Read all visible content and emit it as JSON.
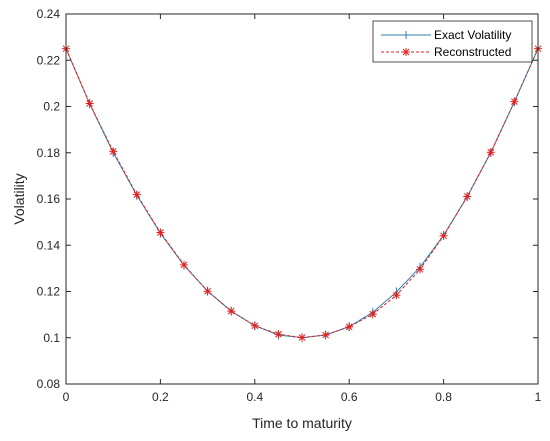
{
  "chart_data": {
    "type": "line",
    "title": "",
    "xlabel": "Time to maturity",
    "ylabel": "Volatility",
    "xlim": [
      0,
      1
    ],
    "ylim": [
      0.08,
      0.24
    ],
    "x_ticks": [
      0,
      0.2,
      0.4,
      0.6,
      0.8,
      1
    ],
    "x_tick_labels": [
      "0",
      "0.2",
      "0.4",
      "0.6",
      "0.8",
      "1"
    ],
    "y_ticks": [
      0.08,
      0.1,
      0.12,
      0.14,
      0.16,
      0.18,
      0.2,
      0.22,
      0.24
    ],
    "y_tick_labels": [
      "0.08",
      "0.1",
      "0.12",
      "0.14",
      "0.16",
      "0.18",
      "0.2",
      "0.22",
      "0.24"
    ],
    "grid": false,
    "legend_position": "top-right",
    "x": [
      0,
      0.05,
      0.1,
      0.15,
      0.2,
      0.25,
      0.3,
      0.35,
      0.4,
      0.45,
      0.5,
      0.55,
      0.6,
      0.65,
      0.7,
      0.75,
      0.8,
      0.85,
      0.9,
      0.95,
      1
    ],
    "series": [
      {
        "name": "Exact Volatility",
        "color": "#2f7fae",
        "style": "solid",
        "marker": "plus",
        "values": [
          0.225,
          0.2012,
          0.1801,
          0.1616,
          0.1452,
          0.1313,
          0.1202,
          0.1115,
          0.1052,
          0.1012,
          0.1,
          0.1012,
          0.1048,
          0.111,
          0.1198,
          0.1305,
          0.1443,
          0.161,
          0.1801,
          0.202,
          0.225
        ]
      },
      {
        "name": "Reconstructed",
        "color": "#e02020",
        "style": "dashed",
        "marker": "asterisk",
        "values": [
          0.225,
          0.2013,
          0.1806,
          0.1619,
          0.1455,
          0.1315,
          0.1201,
          0.1115,
          0.1052,
          0.1015,
          0.1001,
          0.1012,
          0.1047,
          0.1102,
          0.1184,
          0.1296,
          0.1441,
          0.1611,
          0.1802,
          0.2021,
          0.225
        ]
      }
    ]
  }
}
